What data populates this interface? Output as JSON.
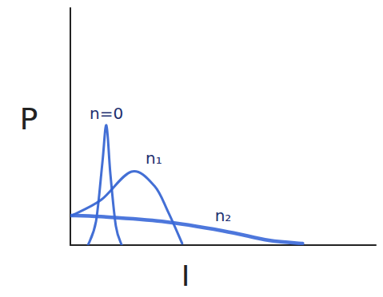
{
  "chart_data": {
    "type": "line",
    "x_label": "I",
    "y_label": "P",
    "xlim": [
      0,
      10
    ],
    "ylim": [
      0,
      10
    ],
    "xticks": [],
    "yticks": [],
    "tick_labels": false,
    "grid": false,
    "series": [
      {
        "name": "n=0",
        "color": "#2f5fd0",
        "x": [
          0.58,
          0.84,
          1.05,
          1.18,
          1.31,
          1.49,
          1.68
        ],
        "values": [
          0,
          1.0,
          3.5,
          5.05,
          3.0,
          0.8,
          0
        ]
      },
      {
        "name": "n₁",
        "color": "#2f5fd0",
        "x": [
          0.05,
          1.0,
          2.0,
          2.75,
          3.2,
          3.66
        ],
        "values": [
          1.25,
          1.9,
          3.1,
          2.5,
          1.4,
          0.07
        ]
      },
      {
        "name": "n₂",
        "color": "#3a68d8",
        "x": [
          0,
          1,
          3,
          5,
          6.5,
          7.6
        ],
        "values": [
          1.25,
          1.2,
          1.0,
          0.6,
          0.2,
          0.07
        ]
      }
    ]
  }
}
